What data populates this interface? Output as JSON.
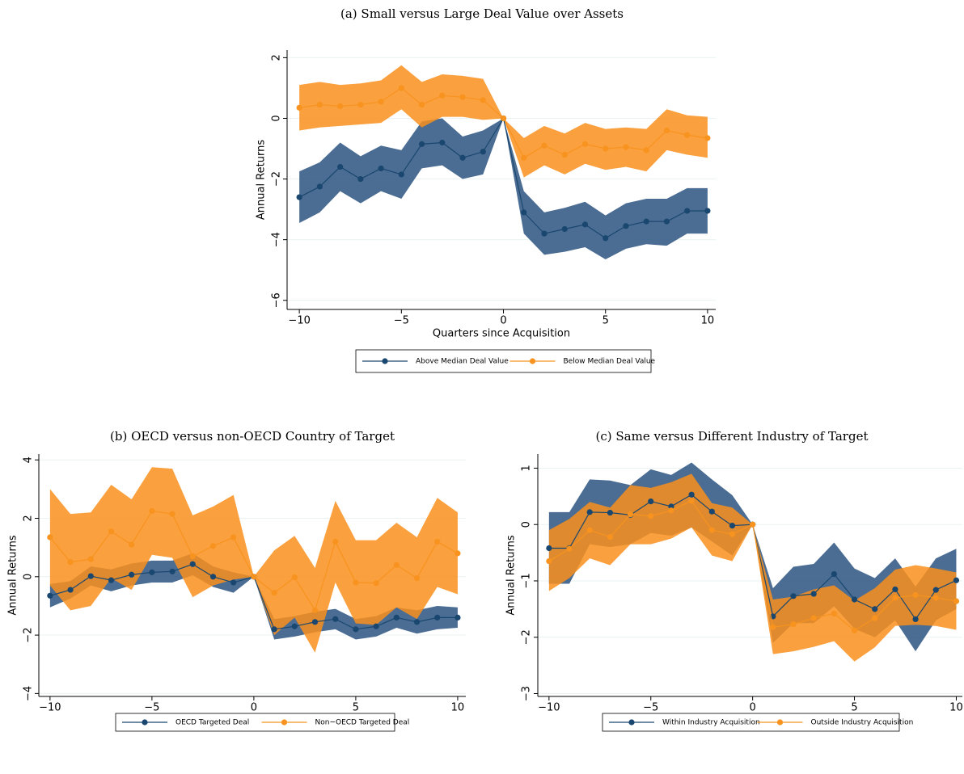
{
  "chart_data": [
    {
      "type": "line",
      "title": "(a) Small versus Large Deal Value over Assets",
      "x_label": "Quarters since Acquisition",
      "y_label": "Annual Returns",
      "x": [
        -10,
        -9,
        -8,
        -7,
        -6,
        -5,
        -4,
        -3,
        -2,
        -1,
        0,
        1,
        2,
        3,
        4,
        5,
        6,
        7,
        8,
        9,
        10
      ],
      "xlim": [
        -10.6,
        10.4
      ],
      "ylim": [
        -6.3,
        2.25
      ],
      "xticks": [
        {
          "value": -10,
          "label": "−10"
        },
        {
          "value": -5,
          "label": "−5"
        },
        0,
        5,
        10
      ],
      "yticks": [
        {
          "value": -6,
          "label": "−6"
        },
        {
          "value": -4,
          "label": "−4"
        },
        {
          "value": -2,
          "label": "−2"
        },
        0,
        2
      ],
      "grid": true,
      "series": [
        {
          "name": "Above Median Deal Value",
          "color": "#1a476f",
          "band_color": "#2b5480",
          "values": [
            -2.6,
            -2.25,
            -1.6,
            -2.0,
            -1.65,
            -1.85,
            -0.85,
            -0.8,
            -1.3,
            -1.1,
            0,
            -3.1,
            -3.8,
            -3.65,
            -3.5,
            -3.95,
            -3.55,
            -3.4,
            -3.4,
            -3.05,
            -3.05
          ],
          "lower": [
            -3.45,
            -3.1,
            -2.4,
            -2.8,
            -2.4,
            -2.65,
            -1.65,
            -1.55,
            -2.0,
            -1.85,
            0,
            -3.8,
            -4.5,
            -4.4,
            -4.25,
            -4.65,
            -4.3,
            -4.15,
            -4.2,
            -3.8,
            -3.8
          ],
          "upper": [
            -1.75,
            -1.45,
            -0.8,
            -1.25,
            -0.9,
            -1.05,
            -0.1,
            0.0,
            -0.6,
            -0.4,
            0,
            -2.4,
            -3.1,
            -2.95,
            -2.75,
            -3.2,
            -2.8,
            -2.65,
            -2.65,
            -2.3,
            -2.3
          ]
        },
        {
          "name": "Below Median Deal Value",
          "color": "#f7931e",
          "band_color": "#f98f1c",
          "values": [
            0.35,
            0.45,
            0.4,
            0.45,
            0.55,
            1.0,
            0.45,
            0.75,
            0.7,
            0.6,
            0,
            -1.3,
            -0.9,
            -1.2,
            -0.85,
            -1.0,
            -0.95,
            -1.05,
            -0.4,
            -0.55,
            -0.65
          ],
          "lower": [
            -0.4,
            -0.3,
            -0.25,
            -0.2,
            -0.15,
            0.3,
            -0.3,
            0.05,
            0.05,
            -0.05,
            0,
            -1.95,
            -1.55,
            -1.85,
            -1.5,
            -1.7,
            -1.6,
            -1.75,
            -1.05,
            -1.2,
            -1.3
          ],
          "upper": [
            1.1,
            1.2,
            1.1,
            1.15,
            1.25,
            1.75,
            1.2,
            1.45,
            1.4,
            1.3,
            0,
            -0.65,
            -0.25,
            -0.5,
            -0.15,
            -0.35,
            -0.3,
            -0.35,
            0.3,
            0.1,
            0.05
          ]
        }
      ]
    },
    {
      "type": "line",
      "title": "(b) OECD versus non-OECD Country of Target",
      "x_label": "Quarters since Acquisition",
      "y_label": "Annual Returns",
      "x": [
        -10,
        -9,
        -8,
        -7,
        -6,
        -5,
        -4,
        -3,
        -2,
        -1,
        0,
        1,
        2,
        3,
        4,
        5,
        6,
        7,
        8,
        9,
        10
      ],
      "xlim": [
        -10.55,
        10.4
      ],
      "ylim": [
        -4.1,
        4.2
      ],
      "xticks": [
        {
          "value": -10,
          "label": "−10"
        },
        {
          "value": -5,
          "label": "−5"
        },
        0,
        5,
        10
      ],
      "yticks": [
        {
          "value": -4,
          "label": "−4"
        },
        {
          "value": -2,
          "label": "−2"
        },
        0,
        2,
        4
      ],
      "grid": true,
      "series": [
        {
          "name": "OECD Targeted Deal",
          "color": "#1a476f",
          "band_color": "#2b5480",
          "values": [
            -0.65,
            -0.45,
            0.02,
            -0.12,
            0.07,
            0.15,
            0.18,
            0.43,
            0.0,
            -0.2,
            0,
            -1.8,
            -1.7,
            -1.55,
            -1.45,
            -1.8,
            -1.7,
            -1.4,
            -1.55,
            -1.4,
            -1.4
          ],
          "lower": [
            -1.05,
            -0.75,
            -0.3,
            -0.5,
            -0.3,
            -0.2,
            -0.2,
            0.05,
            -0.35,
            -0.55,
            0,
            -2.15,
            -2.05,
            -1.9,
            -1.8,
            -2.15,
            -2.05,
            -1.75,
            -1.95,
            -1.8,
            -1.75
          ],
          "upper": [
            -0.25,
            -0.15,
            0.35,
            0.25,
            0.45,
            0.55,
            0.55,
            0.8,
            0.35,
            0.15,
            0,
            -1.45,
            -1.35,
            -1.2,
            -1.1,
            -1.45,
            -1.35,
            -1.05,
            -1.15,
            -1.0,
            -1.05
          ]
        },
        {
          "name": "Non−OECD Targeted Deal",
          "color": "#f7931e",
          "band_color": "#f98f1c",
          "values": [
            1.35,
            0.5,
            0.6,
            1.55,
            1.1,
            2.25,
            2.15,
            0.7,
            1.05,
            1.35,
            0,
            -0.55,
            -0.02,
            -1.15,
            1.2,
            -0.2,
            -0.22,
            0.4,
            -0.05,
            1.2,
            0.8
          ],
          "lower": [
            -0.3,
            -1.15,
            -1.0,
            -0.05,
            -0.45,
            0.75,
            0.65,
            -0.7,
            -0.3,
            -0.1,
            0,
            -2.0,
            -1.4,
            -2.6,
            -0.2,
            -1.6,
            -1.65,
            -1.05,
            -1.45,
            -0.35,
            -0.6
          ],
          "upper": [
            3.0,
            2.15,
            2.2,
            3.15,
            2.65,
            3.75,
            3.7,
            2.1,
            2.4,
            2.8,
            0,
            0.9,
            1.4,
            0.3,
            2.6,
            1.25,
            1.25,
            1.85,
            1.35,
            2.7,
            2.2
          ]
        }
      ]
    },
    {
      "type": "line",
      "title": "(c) Same versus Different Industry of Target",
      "x_label": "Quarters since Acquisition",
      "y_label": "Annual Returns",
      "x": [
        -10,
        -9,
        -8,
        -7,
        -6,
        -5,
        -4,
        -3,
        -2,
        -1,
        0,
        1,
        2,
        3,
        4,
        5,
        6,
        7,
        8,
        9,
        10
      ],
      "xlim": [
        -10.55,
        10.3
      ],
      "ylim": [
        -3.05,
        1.25
      ],
      "xticks": [
        {
          "value": -10,
          "label": "−10"
        },
        {
          "value": -5,
          "label": "−5"
        },
        0,
        5,
        10
      ],
      "yticks": [
        {
          "value": -3,
          "label": "−3"
        },
        {
          "value": -2,
          "label": "−2"
        },
        {
          "value": -1,
          "label": "−1"
        },
        0,
        1
      ],
      "grid": true,
      "series": [
        {
          "name": "Within Industry Acquisition",
          "color": "#1a476f",
          "band_color": "#2b5480",
          "values": [
            -0.42,
            -0.42,
            0.22,
            0.21,
            0.17,
            0.41,
            0.32,
            0.53,
            0.23,
            -0.02,
            0,
            -1.63,
            -1.27,
            -1.23,
            -0.88,
            -1.33,
            -1.5,
            -1.15,
            -1.68,
            -1.16,
            -0.99
          ],
          "lower": [
            -1.05,
            -1.05,
            -0.35,
            -0.4,
            -0.35,
            -0.15,
            -0.2,
            -0.05,
            -0.3,
            -0.55,
            0,
            -2.1,
            -1.75,
            -1.75,
            -1.45,
            -1.85,
            -2.0,
            -1.7,
            -2.25,
            -1.7,
            -1.5
          ],
          "upper": [
            0.22,
            0.22,
            0.8,
            0.78,
            0.7,
            0.98,
            0.88,
            1.1,
            0.8,
            0.52,
            0,
            -1.13,
            -0.75,
            -0.7,
            -0.32,
            -0.78,
            -0.95,
            -0.6,
            -1.1,
            -0.6,
            -0.43
          ]
        },
        {
          "name": "Outside Industry Acquisition",
          "color": "#f7931e",
          "band_color": "#f98f1c",
          "values": [
            -0.65,
            -0.43,
            -0.1,
            -0.22,
            0.18,
            0.15,
            0.25,
            0.42,
            -0.1,
            -0.17,
            0,
            -1.82,
            -1.77,
            -1.66,
            -1.58,
            -1.88,
            -1.66,
            -1.3,
            -1.25,
            -1.3,
            -1.36
          ],
          "lower": [
            -1.18,
            -0.95,
            -0.6,
            -0.72,
            -0.35,
            -0.35,
            -0.25,
            -0.05,
            -0.55,
            -0.65,
            0,
            -2.3,
            -2.25,
            -2.17,
            -2.07,
            -2.43,
            -2.18,
            -1.8,
            -1.78,
            -1.8,
            -1.87
          ],
          "upper": [
            -0.1,
            0.1,
            0.4,
            0.3,
            0.7,
            0.65,
            0.75,
            0.9,
            0.38,
            0.3,
            0,
            -1.33,
            -1.28,
            -1.15,
            -1.08,
            -1.35,
            -1.13,
            -0.8,
            -0.72,
            -0.78,
            -0.85
          ]
        }
      ]
    }
  ]
}
